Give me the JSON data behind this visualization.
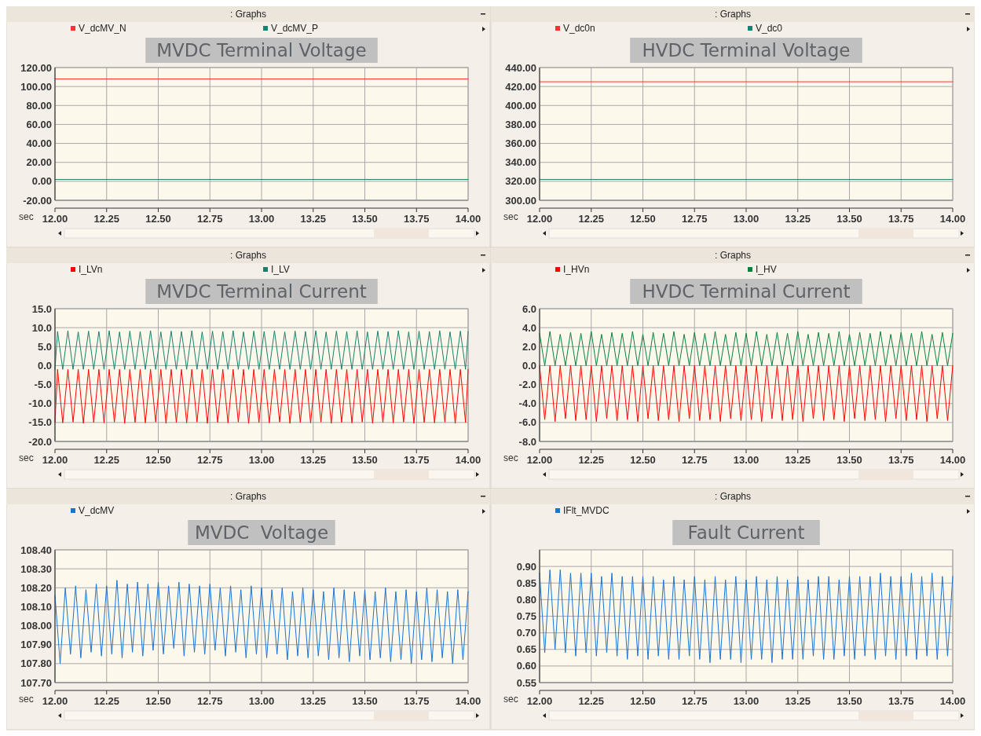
{
  "chart_data": [
    {
      "type": "line",
      "title": "MVDC Terminal Voltage",
      "subtitle": ": Graphs",
      "xlabel": "sec",
      "xlim": [
        12,
        14
      ],
      "xticks": [
        {
          "value": 12,
          "label": "12.00"
        },
        {
          "value": 12.25,
          "label": "12.25"
        },
        {
          "value": 12.5,
          "label": "12.50"
        },
        {
          "value": 12.75,
          "label": "12.75"
        },
        {
          "value": 13,
          "label": "13.00"
        },
        {
          "value": 13.25,
          "label": "13.25"
        },
        {
          "value": 13.5,
          "label": "13.50"
        },
        {
          "value": 13.75,
          "label": "13.75"
        },
        {
          "value": 14,
          "label": "14.00"
        }
      ],
      "ylim": [
        -20,
        120
      ],
      "yticks": [
        {
          "value": -20,
          "label": "-20.00"
        },
        {
          "value": 0,
          "label": "0.00"
        },
        {
          "value": 20,
          "label": "20.00"
        },
        {
          "value": 40,
          "label": "40.00"
        },
        {
          "value": 60,
          "label": "60.00"
        },
        {
          "value": 80,
          "label": "80.00"
        },
        {
          "value": 100,
          "label": "100.00"
        },
        {
          "value": 120,
          "label": "120.00"
        }
      ],
      "grid": true,
      "legend": "top",
      "series": [
        {
          "name": "V_dcMV_N",
          "color": "#ff3030",
          "x": [
            12,
            13,
            14
          ],
          "values": [
            108,
            108,
            108
          ]
        },
        {
          "name": "V_dcMV_P",
          "color": "#1a8070",
          "x": [
            12,
            13,
            14
          ],
          "values": [
            2,
            2,
            2
          ]
        }
      ]
    },
    {
      "type": "line",
      "title": "HVDC Terminal Voltage",
      "subtitle": ": Graphs",
      "xlabel": "sec",
      "xlim": [
        12,
        14
      ],
      "xticks": [
        {
          "value": 12,
          "label": "12.00"
        },
        {
          "value": 12.25,
          "label": "12.25"
        },
        {
          "value": 12.5,
          "label": "12.50"
        },
        {
          "value": 12.75,
          "label": "12.75"
        },
        {
          "value": 13,
          "label": "13.00"
        },
        {
          "value": 13.25,
          "label": "13.25"
        },
        {
          "value": 13.5,
          "label": "13.50"
        },
        {
          "value": 13.75,
          "label": "13.75"
        },
        {
          "value": 14,
          "label": "14.00"
        }
      ],
      "ylim": [
        300,
        440
      ],
      "yticks": [
        {
          "value": 300,
          "label": "300.00"
        },
        {
          "value": 320,
          "label": "320.00"
        },
        {
          "value": 340,
          "label": "340.00"
        },
        {
          "value": 360,
          "label": "360.00"
        },
        {
          "value": 380,
          "label": "380.00"
        },
        {
          "value": 400,
          "label": "400.00"
        },
        {
          "value": 420,
          "label": "420.00"
        },
        {
          "value": 440,
          "label": "440.00"
        }
      ],
      "grid": true,
      "legend": "top",
      "series": [
        {
          "name": "V_dc0n",
          "color": "#ff3030",
          "x": [
            12,
            13,
            14
          ],
          "values": [
            425,
            425,
            425
          ]
        },
        {
          "name": "V_dc0",
          "color": "#1a8070",
          "x": [
            12,
            13,
            14
          ],
          "values": [
            322,
            322,
            322
          ]
        }
      ]
    },
    {
      "type": "line",
      "title": "MVDC Terminal Current",
      "subtitle": ": Graphs",
      "xlabel": "sec",
      "xlim": [
        12,
        14
      ],
      "xticks": [
        {
          "value": 12,
          "label": "12.00"
        },
        {
          "value": 12.25,
          "label": "12.25"
        },
        {
          "value": 12.5,
          "label": "12.50"
        },
        {
          "value": 12.75,
          "label": "12.75"
        },
        {
          "value": 13,
          "label": "13.00"
        },
        {
          "value": 13.25,
          "label": "13.25"
        },
        {
          "value": 13.5,
          "label": "13.50"
        },
        {
          "value": 13.75,
          "label": "13.75"
        },
        {
          "value": 14,
          "label": "14.00"
        }
      ],
      "ylim": [
        -20,
        15
      ],
      "yticks": [
        {
          "value": -20,
          "label": "-20.0"
        },
        {
          "value": -15,
          "label": "-15.0"
        },
        {
          "value": -10,
          "label": "-10.0"
        },
        {
          "value": -5,
          "label": "-5.0"
        },
        {
          "value": 0,
          "label": "0.0"
        },
        {
          "value": 5,
          "label": "5.0"
        },
        {
          "value": 10,
          "label": "10.0"
        },
        {
          "value": 15,
          "label": "15.0"
        }
      ],
      "grid": true,
      "legend": "top",
      "x": [
        12,
        12.0125,
        12.0375,
        12.0625,
        12.0875,
        12.1125,
        12.1375,
        12.1625,
        12.1875,
        12.2125,
        12.2375,
        12.2625,
        12.2875,
        12.3125,
        12.3375,
        12.3625,
        12.3875,
        12.4125,
        12.4375,
        12.4625,
        12.4875,
        12.5125,
        12.5375,
        12.5625,
        12.5875,
        12.6125,
        12.6375,
        12.6625,
        12.6875,
        12.7125,
        12.7375,
        12.7625,
        12.7875,
        12.8125,
        12.8375,
        12.8625,
        12.8875,
        12.9125,
        12.9375,
        12.9625,
        12.9875,
        13.0125,
        13.0375,
        13.0625,
        13.0875,
        13.1125,
        13.1375,
        13.1625,
        13.1875,
        13.2125,
        13.2375,
        13.2625,
        13.2875,
        13.3125,
        13.3375,
        13.3625,
        13.3875,
        13.4125,
        13.4375,
        13.4625,
        13.4875,
        13.5125,
        13.5375,
        13.5625,
        13.5875,
        13.6125,
        13.6375,
        13.6625,
        13.6875,
        13.7125,
        13.7375,
        13.7625,
        13.7875,
        13.8125,
        13.8375,
        13.8625,
        13.8875,
        13.9125,
        13.9375,
        13.9625,
        13.9875,
        14
      ],
      "series": [
        {
          "name": "I_LVn",
          "color": "#ff0000",
          "values": [
            -15,
            -1,
            -15.1,
            -1,
            -14.9,
            -1,
            -15.2,
            -1,
            -15,
            -1,
            -15.1,
            -1,
            -14.9,
            -1,
            -15.2,
            -1,
            -15,
            -1,
            -15.1,
            -1,
            -14.9,
            -1,
            -15.2,
            -1,
            -15,
            -1,
            -15.1,
            -1,
            -14.9,
            -1,
            -15.2,
            -1,
            -15,
            -1,
            -15.1,
            -1,
            -14.9,
            -1,
            -15.2,
            -1,
            -15,
            -1,
            -15.1,
            -1,
            -14.9,
            -1,
            -15.2,
            -1,
            -15,
            -1,
            -15.1,
            -1,
            -14.9,
            -1,
            -15.2,
            -1,
            -15,
            -1,
            -15.1,
            -1,
            -14.9,
            -1,
            -15.2,
            -1,
            -15,
            -1,
            -15.1,
            -1,
            -14.9,
            -1,
            -15.2,
            -1,
            -15,
            -1,
            -15.1,
            -1,
            -14.9,
            -1,
            -15.2,
            -1,
            -15,
            -1
          ]
        },
        {
          "name": "I_LV",
          "color": "#1a806c",
          "values": [
            -1,
            9,
            -1,
            9.2,
            -1,
            8.9,
            -1,
            9.1,
            -1,
            9,
            -1,
            9.2,
            -1,
            8.9,
            -1,
            9.1,
            -1,
            9,
            -1,
            9.2,
            -1,
            8.9,
            -1,
            9.1,
            -1,
            9,
            -1,
            9.2,
            -1,
            8.9,
            -1,
            9.1,
            -1,
            9,
            -1,
            9.2,
            -1,
            8.9,
            -1,
            9.1,
            -1,
            9,
            -1,
            9.2,
            -1,
            8.9,
            -1,
            9.1,
            -1,
            9,
            -1,
            9.2,
            -1,
            8.9,
            -1,
            9.1,
            -1,
            9,
            -1,
            9.2,
            -1,
            8.9,
            -1,
            9.1,
            -1,
            9,
            -1,
            9.2,
            -1,
            8.9,
            -1,
            9.1,
            -1,
            9,
            -1,
            9.2,
            -1,
            8.9,
            -1,
            9.1,
            -1,
            9
          ]
        }
      ]
    },
    {
      "type": "line",
      "title": "HVDC Terminal Current",
      "subtitle": ": Graphs",
      "xlabel": "sec",
      "xlim": [
        12,
        14
      ],
      "xticks": [
        {
          "value": 12,
          "label": "12.00"
        },
        {
          "value": 12.25,
          "label": "12.25"
        },
        {
          "value": 12.5,
          "label": "12.50"
        },
        {
          "value": 12.75,
          "label": "12.75"
        },
        {
          "value": 13,
          "label": "13.00"
        },
        {
          "value": 13.25,
          "label": "13.25"
        },
        {
          "value": 13.5,
          "label": "13.50"
        },
        {
          "value": 13.75,
          "label": "13.75"
        },
        {
          "value": 14,
          "label": "14.00"
        }
      ],
      "ylim": [
        -8,
        6
      ],
      "yticks": [
        {
          "value": -8,
          "label": "-8.0"
        },
        {
          "value": -6,
          "label": "-6.0"
        },
        {
          "value": -4,
          "label": "-4.0"
        },
        {
          "value": -2,
          "label": "-2.0"
        },
        {
          "value": 0,
          "label": "0.0"
        },
        {
          "value": 2,
          "label": "2.0"
        },
        {
          "value": 4,
          "label": "4.0"
        },
        {
          "value": 6,
          "label": "6.0"
        }
      ],
      "grid": true,
      "legend": "top",
      "x": [
        12,
        12.025,
        12.05,
        12.075,
        12.1,
        12.125,
        12.15,
        12.175,
        12.2,
        12.225,
        12.25,
        12.275,
        12.3,
        12.325,
        12.35,
        12.375,
        12.4,
        12.425,
        12.45,
        12.475,
        12.5,
        12.525,
        12.55,
        12.575,
        12.6,
        12.625,
        12.65,
        12.675,
        12.7,
        12.725,
        12.75,
        12.775,
        12.8,
        12.825,
        12.85,
        12.875,
        12.9,
        12.925,
        12.95,
        12.975,
        13,
        13.025,
        13.05,
        13.075,
        13.1,
        13.125,
        13.15,
        13.175,
        13.2,
        13.225,
        13.25,
        13.275,
        13.3,
        13.325,
        13.35,
        13.375,
        13.4,
        13.425,
        13.45,
        13.475,
        13.5,
        13.525,
        13.55,
        13.575,
        13.6,
        13.625,
        13.65,
        13.675,
        13.7,
        13.725,
        13.75,
        13.775,
        13.8,
        13.825,
        13.85,
        13.875,
        13.9,
        13.925,
        13.95,
        13.975,
        14
      ],
      "series": [
        {
          "name": "I_HVn",
          "color": "#ff0000",
          "values": [
            0,
            -5.7,
            0,
            -5.9,
            0,
            -5.6,
            0,
            -5.8,
            0,
            -5.7,
            0,
            -5.9,
            0,
            -5.6,
            0,
            -5.8,
            0,
            -5.7,
            0,
            -5.9,
            0,
            -5.6,
            0,
            -5.8,
            0,
            -5.7,
            0,
            -5.9,
            0,
            -5.6,
            0,
            -5.8,
            0,
            -5.7,
            0,
            -5.9,
            0,
            -5.6,
            0,
            -5.8,
            0,
            -5.7,
            0,
            -5.9,
            0,
            -5.6,
            0,
            -5.8,
            0,
            -5.7,
            0,
            -5.9,
            0,
            -5.6,
            0,
            -5.8,
            0,
            -5.7,
            0,
            -5.9,
            0,
            -5.6,
            0,
            -5.8,
            0,
            -5.7,
            0,
            -5.9,
            0,
            -5.6,
            0,
            -5.8,
            0,
            -5.7,
            0,
            -5.9,
            0,
            -5.6,
            0,
            -5.8,
            0
          ]
        },
        {
          "name": "I_HV",
          "color": "#0a8040",
          "values": [
            3.4,
            0,
            3.6,
            0,
            3.3,
            0,
            3.5,
            0,
            3.4,
            0,
            3.6,
            0,
            3.3,
            0,
            3.5,
            0,
            3.4,
            0,
            3.6,
            0,
            3.3,
            0,
            3.5,
            0,
            3.4,
            0,
            3.6,
            0,
            3.3,
            0,
            3.5,
            0,
            3.4,
            0,
            3.6,
            0,
            3.3,
            0,
            3.5,
            0,
            3.4,
            0,
            3.6,
            0,
            3.3,
            0,
            3.5,
            0,
            3.4,
            0,
            3.6,
            0,
            3.3,
            0,
            3.5,
            0,
            3.4,
            0,
            3.6,
            0,
            3.3,
            0,
            3.5,
            0,
            3.4,
            0,
            3.6,
            0,
            3.3,
            0,
            3.5,
            0,
            3.4,
            0,
            3.6,
            0,
            3.3,
            0,
            3.5,
            0,
            3.4
          ]
        }
      ]
    },
    {
      "type": "line",
      "title": "MVDC  Voltage",
      "subtitle": ": Graphs",
      "xlabel": "sec",
      "xlim": [
        12,
        14
      ],
      "xticks": [
        {
          "value": 12,
          "label": "12.00"
        },
        {
          "value": 12.25,
          "label": "12.25"
        },
        {
          "value": 12.5,
          "label": "12.50"
        },
        {
          "value": 12.75,
          "label": "12.75"
        },
        {
          "value": 13,
          "label": "13.00"
        },
        {
          "value": 13.25,
          "label": "13.25"
        },
        {
          "value": 13.5,
          "label": "13.50"
        },
        {
          "value": 13.75,
          "label": "13.75"
        },
        {
          "value": 14,
          "label": "14.00"
        }
      ],
      "ylim": [
        107.7,
        108.4
      ],
      "yticks": [
        {
          "value": 107.7,
          "label": "107.70"
        },
        {
          "value": 107.8,
          "label": "107.80"
        },
        {
          "value": 107.9,
          "label": "107.90"
        },
        {
          "value": 108,
          "label": "108.00"
        },
        {
          "value": 108.1,
          "label": "108.10"
        },
        {
          "value": 108.2,
          "label": "108.20"
        },
        {
          "value": 108.3,
          "label": "108.30"
        },
        {
          "value": 108.4,
          "label": "108.40"
        }
      ],
      "grid": true,
      "legend": "top",
      "x": [
        12,
        12.025,
        12.05,
        12.075,
        12.1,
        12.125,
        12.15,
        12.175,
        12.2,
        12.225,
        12.25,
        12.275,
        12.3,
        12.325,
        12.35,
        12.375,
        12.4,
        12.425,
        12.45,
        12.475,
        12.5,
        12.525,
        12.55,
        12.575,
        12.6,
        12.625,
        12.65,
        12.675,
        12.7,
        12.725,
        12.75,
        12.775,
        12.8,
        12.825,
        12.85,
        12.875,
        12.9,
        12.925,
        12.95,
        12.975,
        13,
        13.025,
        13.05,
        13.075,
        13.1,
        13.125,
        13.15,
        13.175,
        13.2,
        13.225,
        13.25,
        13.275,
        13.3,
        13.325,
        13.35,
        13.375,
        13.4,
        13.425,
        13.45,
        13.475,
        13.5,
        13.525,
        13.55,
        13.575,
        13.6,
        13.625,
        13.65,
        13.675,
        13.7,
        13.725,
        13.75,
        13.775,
        13.8,
        13.825,
        13.85,
        13.875,
        13.9,
        13.925,
        13.95,
        13.975,
        14
      ],
      "series": [
        {
          "name": "V_dcMV",
          "color": "#1a73d2",
          "values": [
            108.16,
            107.8,
            108.2,
            107.85,
            108.21,
            107.83,
            108.19,
            107.86,
            108.22,
            107.84,
            108.21,
            107.85,
            108.24,
            107.83,
            108.22,
            107.86,
            108.23,
            107.84,
            108.22,
            107.87,
            108.23,
            107.85,
            108.21,
            107.88,
            108.23,
            107.84,
            108.22,
            107.86,
            108.21,
            107.85,
            108.22,
            107.87,
            108.2,
            107.84,
            108.21,
            107.86,
            108.19,
            107.83,
            108.21,
            107.85,
            108.2,
            107.83,
            108.19,
            107.85,
            108.2,
            107.82,
            108.18,
            107.84,
            108.2,
            107.83,
            108.19,
            107.84,
            108.18,
            107.82,
            108.2,
            107.83,
            108.19,
            107.81,
            108.18,
            107.84,
            108.19,
            107.82,
            108.18,
            107.83,
            108.2,
            107.81,
            108.18,
            107.82,
            108.19,
            107.8,
            108.18,
            107.82,
            108.2,
            107.81,
            108.19,
            107.83,
            108.18,
            107.8,
            108.19,
            107.82,
            108.18
          ]
        }
      ]
    },
    {
      "type": "line",
      "title": "Fault Current",
      "subtitle": ": Graphs",
      "xlabel": "sec",
      "xlim": [
        12,
        14
      ],
      "xticks": [
        {
          "value": 12,
          "label": "12.00"
        },
        {
          "value": 12.25,
          "label": "12.25"
        },
        {
          "value": 12.5,
          "label": "12.50"
        },
        {
          "value": 12.75,
          "label": "12.75"
        },
        {
          "value": 13,
          "label": "13.00"
        },
        {
          "value": 13.25,
          "label": "13.25"
        },
        {
          "value": 13.5,
          "label": "13.50"
        },
        {
          "value": 13.75,
          "label": "13.75"
        },
        {
          "value": 14,
          "label": "14.00"
        }
      ],
      "ylim": [
        0.55,
        0.95
      ],
      "yticks": [
        {
          "value": 0.55,
          "label": "0.55"
        },
        {
          "value": 0.6,
          "label": "0.60"
        },
        {
          "value": 0.65,
          "label": "0.65"
        },
        {
          "value": 0.7,
          "label": "0.70"
        },
        {
          "value": 0.75,
          "label": "0.75"
        },
        {
          "value": 0.8,
          "label": "0.80"
        },
        {
          "value": 0.85,
          "label": "0.85"
        },
        {
          "value": 0.9,
          "label": "0.90"
        }
      ],
      "grid": true,
      "legend": "top",
      "x": [
        12,
        12.025,
        12.05,
        12.075,
        12.1,
        12.125,
        12.15,
        12.175,
        12.2,
        12.225,
        12.25,
        12.275,
        12.3,
        12.325,
        12.35,
        12.375,
        12.4,
        12.425,
        12.45,
        12.475,
        12.5,
        12.525,
        12.55,
        12.575,
        12.6,
        12.625,
        12.65,
        12.675,
        12.7,
        12.725,
        12.75,
        12.775,
        12.8,
        12.825,
        12.85,
        12.875,
        12.9,
        12.925,
        12.95,
        12.975,
        13,
        13.025,
        13.05,
        13.075,
        13.1,
        13.125,
        13.15,
        13.175,
        13.2,
        13.225,
        13.25,
        13.275,
        13.3,
        13.325,
        13.35,
        13.375,
        13.4,
        13.425,
        13.45,
        13.475,
        13.5,
        13.525,
        13.55,
        13.575,
        13.6,
        13.625,
        13.65,
        13.675,
        13.7,
        13.725,
        13.75,
        13.775,
        13.8,
        13.825,
        13.85,
        13.875,
        13.9,
        13.925,
        13.95,
        13.975,
        14
      ],
      "series": [
        {
          "name": "IFlt_MVDC",
          "color": "#1a73d2",
          "values": [
            0.88,
            0.64,
            0.89,
            0.65,
            0.89,
            0.64,
            0.88,
            0.63,
            0.88,
            0.64,
            0.88,
            0.63,
            0.87,
            0.64,
            0.88,
            0.63,
            0.87,
            0.62,
            0.87,
            0.63,
            0.87,
            0.62,
            0.87,
            0.63,
            0.86,
            0.62,
            0.87,
            0.62,
            0.86,
            0.63,
            0.87,
            0.62,
            0.86,
            0.61,
            0.87,
            0.62,
            0.86,
            0.62,
            0.87,
            0.61,
            0.86,
            0.62,
            0.87,
            0.62,
            0.86,
            0.61,
            0.87,
            0.62,
            0.86,
            0.62,
            0.87,
            0.62,
            0.86,
            0.63,
            0.87,
            0.62,
            0.87,
            0.62,
            0.86,
            0.63,
            0.87,
            0.62,
            0.87,
            0.63,
            0.87,
            0.62,
            0.88,
            0.63,
            0.87,
            0.62,
            0.87,
            0.63,
            0.88,
            0.62,
            0.87,
            0.63,
            0.88,
            0.62,
            0.87,
            0.63,
            0.87
          ]
        }
      ]
    }
  ]
}
